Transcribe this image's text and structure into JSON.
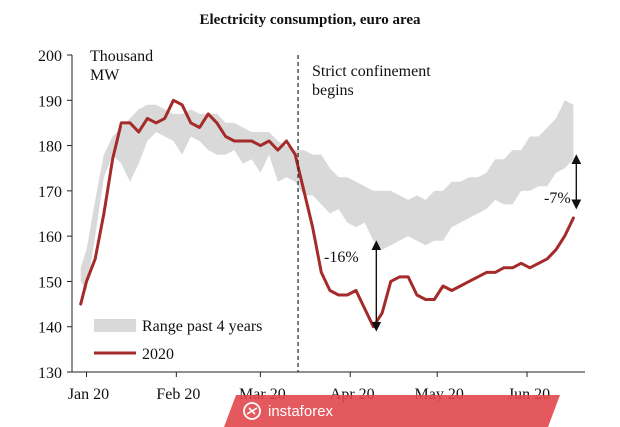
{
  "chart_data": {
    "type": "area",
    "title": "Electricity consumption, euro area",
    "ylabel_line1": "Thousand",
    "ylabel_line2": "MW",
    "ylim": [
      130,
      200
    ],
    "yticks": [
      130,
      140,
      150,
      160,
      170,
      180,
      190,
      200
    ],
    "xticks": [
      {
        "x": 0,
        "label": "Jan 20"
      },
      {
        "x": 31,
        "label": "Feb 20"
      },
      {
        "x": 60,
        "label": "Mar 20"
      },
      {
        "x": 91,
        "label": "Apr 20"
      },
      {
        "x": 121,
        "label": "May 20"
      },
      {
        "x": 152,
        "label": "Jun 20"
      }
    ],
    "xlim": [
      -5,
      172
    ],
    "grid": false,
    "legend": {
      "position": "bottom-left",
      "items": [
        {
          "label": "Range past 4 years",
          "color": "#d9d9d9",
          "kind": "band"
        },
        {
          "label": "2020",
          "color": "#a52a2a",
          "kind": "line"
        }
      ]
    },
    "annotations": {
      "confinement_day": 73,
      "confinement_label_line1": "Strict confinement",
      "confinement_label_line2": "begins",
      "drop_label_1": "-16%",
      "drop_arrow_1": {
        "x": 100,
        "from": 158,
        "to": 140
      },
      "drop_label_2": "-7%",
      "drop_arrow_2": {
        "x": 169,
        "from": 177,
        "to": 167
      }
    },
    "series": [
      {
        "name": "Range past 4 years",
        "kind": "band",
        "color": "#d9d9d9",
        "x": [
          -2,
          0,
          3,
          6,
          9,
          12,
          15,
          18,
          21,
          24,
          27,
          30,
          33,
          36,
          39,
          42,
          45,
          48,
          51,
          54,
          57,
          60,
          63,
          66,
          69,
          72,
          75,
          78,
          81,
          84,
          87,
          90,
          93,
          96,
          99,
          102,
          105,
          108,
          111,
          114,
          117,
          120,
          123,
          126,
          129,
          132,
          135,
          138,
          141,
          144,
          147,
          150,
          153,
          156,
          159,
          162,
          165,
          168
        ],
        "low": [
          150,
          148,
          160,
          173,
          178,
          176,
          172,
          176,
          181,
          183,
          182,
          181,
          178,
          182,
          181,
          179,
          178,
          178,
          179,
          176,
          177,
          174,
          178,
          172,
          173,
          172,
          169,
          169,
          167,
          165,
          166,
          163,
          162,
          163,
          159,
          157,
          158,
          159,
          160,
          159,
          158,
          159,
          159,
          162,
          163,
          164,
          165,
          166,
          168,
          167,
          167,
          170,
          170,
          171,
          171,
          174,
          175,
          177
        ],
        "high": [
          153,
          157,
          168,
          178,
          182,
          184,
          186,
          188,
          189,
          189,
          188,
          187,
          187,
          188,
          187,
          187,
          187,
          185,
          185,
          184,
          183,
          183,
          183,
          181,
          180,
          179,
          179,
          178,
          178,
          175,
          173,
          173,
          172,
          171,
          170,
          170,
          170,
          169,
          168,
          169,
          168,
          170,
          170,
          172,
          172,
          173,
          173,
          174,
          177,
          177,
          179,
          179,
          182,
          182,
          184,
          186,
          190,
          189
        ]
      },
      {
        "name": "2020",
        "kind": "line",
        "color": "#a52a2a",
        "x": [
          -2,
          0,
          3,
          6,
          9,
          12,
          15,
          18,
          21,
          24,
          27,
          30,
          33,
          36,
          39,
          42,
          45,
          48,
          51,
          54,
          57,
          60,
          63,
          66,
          69,
          72,
          75,
          78,
          81,
          84,
          87,
          90,
          93,
          96,
          99,
          102,
          105,
          108,
          111,
          114,
          117,
          120,
          123,
          126,
          129,
          132,
          135,
          138,
          141,
          144,
          147,
          150,
          153,
          156,
          159,
          162,
          165,
          168
        ],
        "values": [
          145,
          150,
          155,
          165,
          177,
          185,
          185,
          183,
          186,
          185,
          186,
          190,
          189,
          185,
          184,
          187,
          185,
          182,
          181,
          181,
          181,
          180,
          181,
          179,
          181,
          178,
          170,
          162,
          152,
          148,
          147,
          147,
          148,
          144,
          140,
          143,
          150,
          151,
          151,
          147,
          146,
          146,
          149,
          148,
          149,
          150,
          151,
          152,
          152,
          153,
          153,
          154,
          153,
          154,
          155,
          157,
          160,
          164
        ]
      }
    ]
  },
  "watermark": {
    "text": "instaforex",
    "color": "#e0474c"
  }
}
